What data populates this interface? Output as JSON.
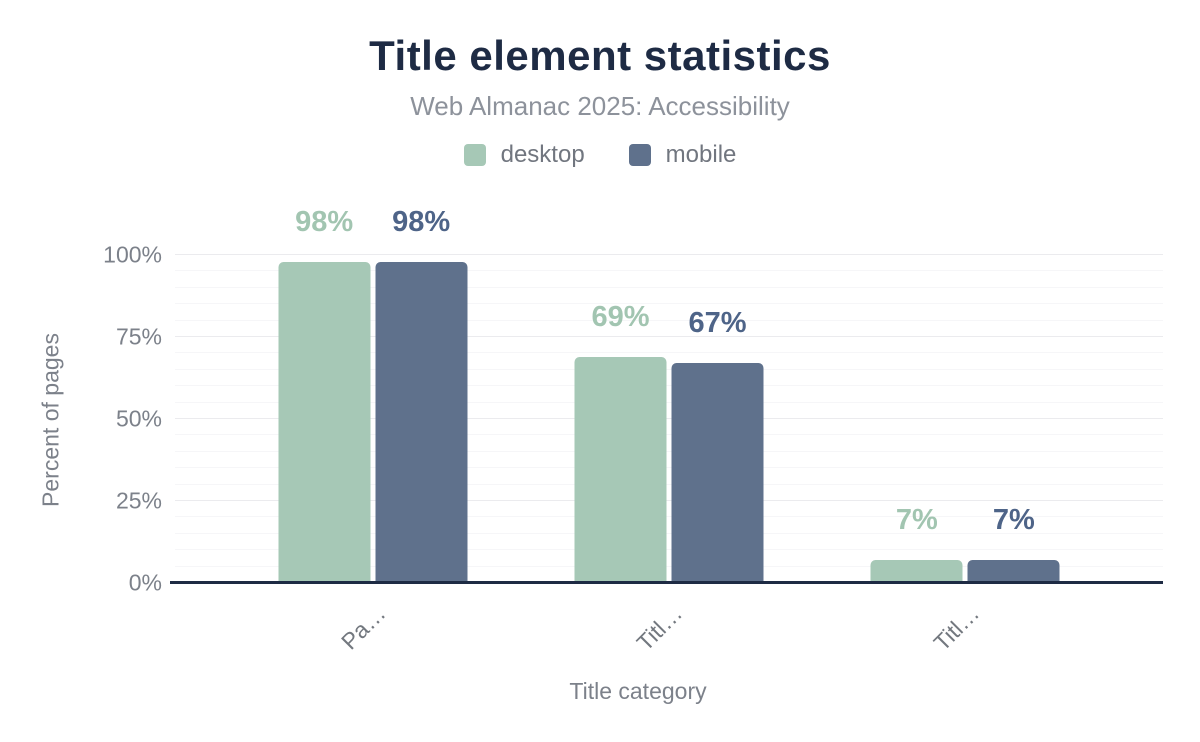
{
  "chart_data": {
    "type": "bar",
    "title": "Title element statistics",
    "subtitle": "Web Almanac 2025: Accessibility",
    "categories": [
      "Pa…",
      "Titl…",
      "Titl…"
    ],
    "series": [
      {
        "name": "desktop",
        "color": "#a6c8b6",
        "label_color": "#a2c5b1",
        "values": [
          98,
          69,
          7
        ]
      },
      {
        "name": "mobile",
        "color": "#5f718c",
        "label_color": "#4e6488",
        "values": [
          98,
          67,
          7
        ]
      }
    ],
    "value_suffix": "%",
    "xlabel": "Title category",
    "ylabel": "Percent of pages",
    "ylim": [
      0,
      100
    ],
    "yticks": [
      0,
      25,
      50,
      75,
      100
    ],
    "ytick_labels": [
      "0%",
      "25%",
      "50%",
      "75%",
      "100%"
    ],
    "grid": {
      "minor_interval": 5,
      "major_interval": 25
    },
    "legend_position": "top",
    "colors": {
      "title": "#1e2b44",
      "subtitle": "#8d929b",
      "axis_line": "#1e2b44",
      "tick_text": "#7c818a",
      "gridline_major": "#ebebee",
      "gridline_minor": "#f6f6f8"
    }
  }
}
